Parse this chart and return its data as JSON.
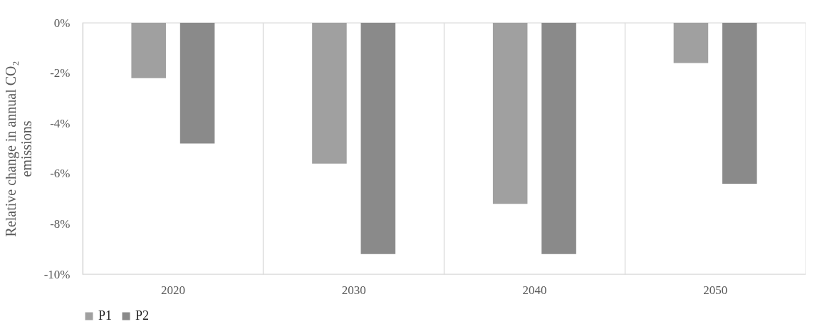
{
  "chart_data": {
    "type": "bar",
    "ylabel": "Relative change in annual CO₂ emissions",
    "categories": [
      "2020",
      "2030",
      "2040",
      "2050"
    ],
    "series": [
      {
        "name": "P1",
        "color": "#a0a0a0",
        "values": [
          -2.2,
          -5.6,
          -7.2,
          -1.6
        ]
      },
      {
        "name": "P2",
        "color": "#8a8a8a",
        "values": [
          -4.8,
          -9.2,
          -9.2,
          -6.4
        ]
      }
    ],
    "ylim": [
      -10,
      0
    ],
    "yticks": [
      {
        "value": 0,
        "label": "0%"
      },
      {
        "value": -2,
        "label": "-2%"
      },
      {
        "value": -4,
        "label": "-4%"
      },
      {
        "value": -6,
        "label": "-6%"
      },
      {
        "value": -8,
        "label": "-8%"
      },
      {
        "value": -10,
        "label": "-10%"
      }
    ],
    "grid": "x",
    "legend": "bottom"
  }
}
